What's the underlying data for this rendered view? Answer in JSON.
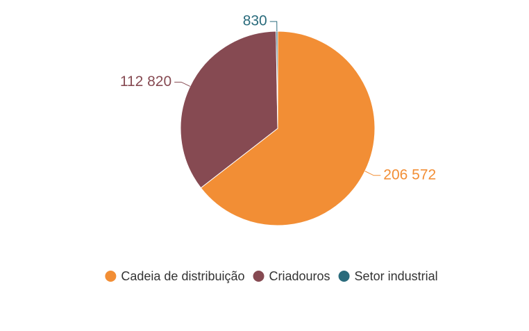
{
  "chart_data": {
    "type": "pie",
    "categories": [
      "Cadeia de distribuição",
      "Criadouros",
      "Setor industrial"
    ],
    "values": [
      206572,
      112820,
      830
    ],
    "value_labels": [
      "206 572",
      "112 820",
      "830"
    ],
    "colors": [
      "#f28e35",
      "#864a52",
      "#2a6b7c"
    ],
    "legend": "bottom"
  }
}
